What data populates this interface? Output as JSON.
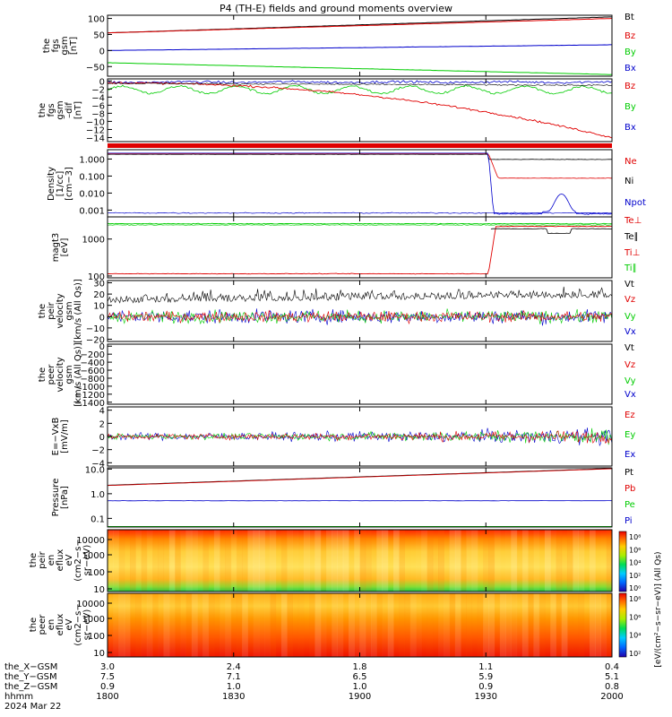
{
  "title": "P4 (TH-E) fields and ground moments overview",
  "colors": {
    "black": "#000000",
    "red": "#e00000",
    "green": "#00cc00",
    "blue": "#0000cc"
  },
  "chart_data": [
    {
      "type": "line",
      "panel": "fgs_gsm",
      "ylabel": [
        "the",
        "fgs",
        "gsm",
        "[nT]"
      ],
      "yticks": [
        "100",
        "50",
        "0",
        "−50"
      ],
      "ylim": [
        -80,
        110
      ],
      "series": [
        {
          "name": "Bt",
          "from": 55,
          "to": 105
        },
        {
          "name": "Bz",
          "from": 55,
          "to": 100
        },
        {
          "name": "By",
          "from": -38,
          "to": -75
        },
        {
          "name": "Bx",
          "from": 0,
          "to": 18
        }
      ]
    },
    {
      "type": "line",
      "panel": "fgs_gsm_dif",
      "ylabel": [
        "the",
        "fgs",
        "gsm",
        "–dif",
        "[nT]"
      ],
      "yticks": [
        "0",
        "−2",
        "−4",
        "−6",
        "−8",
        "−10",
        "−12",
        "−14"
      ],
      "ylim": [
        -15,
        0.5
      ],
      "series": [
        {
          "name": "Bz",
          "from": -0.5,
          "to": -14
        },
        {
          "name": "By",
          "from": -2,
          "to": -2.5
        },
        {
          "name": "Bx",
          "from": -0.3,
          "to": -0.5
        }
      ]
    },
    {
      "type": "line",
      "panel": "density",
      "ylabel": [
        "Density",
        "[1/cc]",
        "[cm−3]"
      ],
      "log": true,
      "yticks": [
        "1.000",
        "0.100",
        "0.010",
        "0.001"
      ],
      "series": [
        {
          "name": "Ne"
        },
        {
          "name": "Ni"
        },
        {
          "name": "Npot"
        }
      ],
      "transition_hhmm": "1930"
    },
    {
      "type": "line",
      "panel": "temperature",
      "ylabel": [
        "magt3",
        "[eV]"
      ],
      "log": true,
      "yticks": [
        "1000",
        "100"
      ],
      "series": [
        {
          "name": "Te⊥"
        },
        {
          "name": "Te∥"
        },
        {
          "name": "Ti⊥"
        },
        {
          "name": "Ti∥"
        }
      ]
    },
    {
      "type": "line",
      "panel": "peir_velocity",
      "ylabel": [
        "the",
        "peir",
        "velocity",
        "gsm",
        "[km/s (All Qs)]"
      ],
      "yticks": [
        "30",
        "20",
        "10",
        "0",
        "−10",
        "−20"
      ],
      "ylim": [
        -22,
        32
      ],
      "series": [
        {
          "name": "Vt"
        },
        {
          "name": "Vz"
        },
        {
          "name": "Vy"
        },
        {
          "name": "Vx"
        }
      ]
    },
    {
      "type": "line",
      "panel": "peer_velocity",
      "ylabel": [
        "the",
        "peer",
        "velocity",
        "gsm",
        "[km/s (All Qs)]"
      ],
      "yticks": [
        "0",
        "−200",
        "−400",
        "−600",
        "−800",
        "−1000",
        "−1200",
        "−1400"
      ],
      "ylim": [
        -1450,
        50
      ],
      "series": [
        {
          "name": "Vt"
        },
        {
          "name": "Vz"
        },
        {
          "name": "Vy"
        },
        {
          "name": "Vx"
        }
      ]
    },
    {
      "type": "line",
      "panel": "efield",
      "ylabel": [
        "E=−VxB",
        "[mV/m]"
      ],
      "yticks": [
        "4",
        "2",
        "0",
        "−2",
        "−4"
      ],
      "ylim": [
        -4.5,
        4.5
      ],
      "series": [
        {
          "name": "Ez"
        },
        {
          "name": "Ey"
        },
        {
          "name": "Ex"
        }
      ]
    },
    {
      "type": "line",
      "panel": "pressure",
      "ylabel": [
        "Pressure",
        "[nPa]"
      ],
      "log": true,
      "yticks": [
        "10.0",
        "1.0",
        "0.1"
      ],
      "series": [
        {
          "name": "Pt"
        },
        {
          "name": "Pb"
        },
        {
          "name": "Pe"
        },
        {
          "name": "Pi"
        }
      ]
    },
    {
      "type": "heatmap",
      "panel": "peir_en_eflux",
      "ylabel": [
        "the",
        "peir",
        "en",
        "eflux",
        "eV",
        "(cm2−s−",
        "sr−eV)"
      ],
      "yticks": [
        "10000",
        "1000",
        "100",
        "10"
      ]
    },
    {
      "type": "heatmap",
      "panel": "peer_en_eflux",
      "ylabel": [
        "the",
        "peer",
        "en",
        "eflux",
        "eV",
        "(cm2−s−",
        "sr−eV)"
      ],
      "yticks": [
        "10000",
        "1000",
        "100",
        "10"
      ]
    }
  ],
  "colorbar": {
    "ticks1": [
      "10⁸",
      "10⁶",
      "10⁴",
      "10²",
      "10⁰"
    ],
    "ticks2": [
      "10⁸",
      "10⁶",
      "10⁴",
      "10²"
    ],
    "label": "[eV/(cm²−s−sr−eV)] (All Qs)"
  },
  "xaxis": {
    "rows": [
      {
        "label": "the_X−GSM",
        "values": [
          "3.0",
          "2.4",
          "1.8",
          "1.1",
          "0.4"
        ]
      },
      {
        "label": "the_Y−GSM",
        "values": [
          "7.5",
          "7.1",
          "6.5",
          "5.9",
          "5.1"
        ]
      },
      {
        "label": "the_Z−GSM",
        "values": [
          "0.9",
          "1.0",
          "1.0",
          "0.9",
          "0.8"
        ]
      },
      {
        "label": "hhmm",
        "values": [
          "1800",
          "1830",
          "1900",
          "1930",
          "2000"
        ]
      }
    ],
    "date": "2024 Mar 22"
  }
}
